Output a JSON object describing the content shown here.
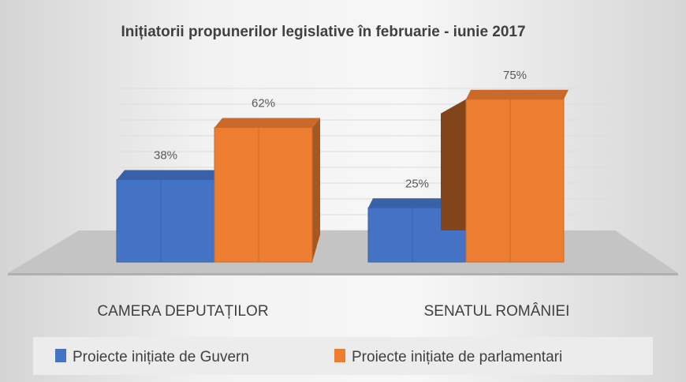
{
  "chart_data": {
    "type": "bar",
    "style": "3d-clustered",
    "title": "Inițiatorii propunerilor legislative în februarie - iunie 2017",
    "categories": [
      "CAMERA DEPUTAȚILOR",
      "SENATUL ROMÂNIEI"
    ],
    "series": [
      {
        "name": "Proiecte inițiate de Guvern",
        "values": [
          38,
          25
        ],
        "labels": [
          "38%",
          "25%"
        ],
        "color": "#4472C4"
      },
      {
        "name": "Proiecte inițiate de parlamentari",
        "values": [
          62,
          75
        ],
        "labels": [
          "62%",
          "75%"
        ],
        "color": "#ED7D31"
      }
    ],
    "unit": "%",
    "ylim": [
      0,
      100
    ],
    "grid": true,
    "legend": "bottom"
  }
}
